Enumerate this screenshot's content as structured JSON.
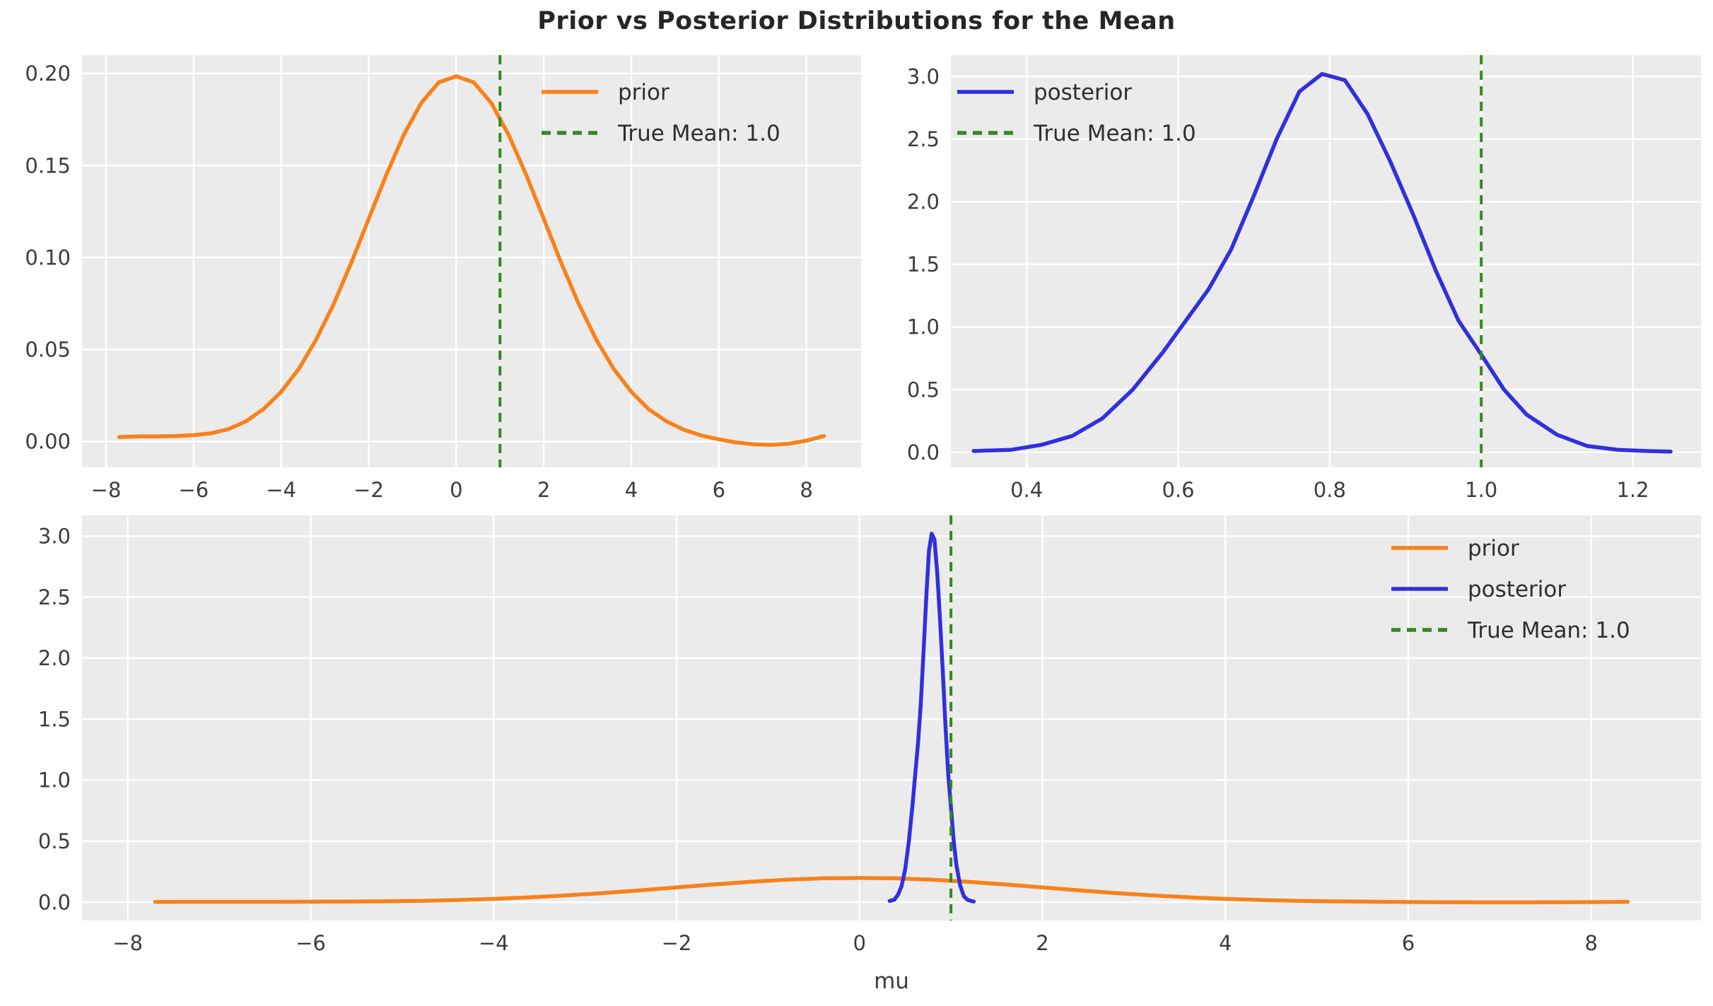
{
  "chart_data": {
    "type": "line",
    "figure_title": "Prior vs Posterior Distributions for the Mean",
    "style": {
      "figure_bg": "#ffffff",
      "plot_bg": "#ebebeb",
      "grid_color": "#ffffff",
      "title_color": "#262626",
      "tick_color": "#3c3c3c",
      "true_mean_color": "#338a1c"
    },
    "true_mean": {
      "value": 1.0,
      "label": "True Mean: 1.0"
    },
    "curves": {
      "prior": {
        "name": "prior",
        "color": "#f7821c",
        "x": [
          -7.7,
          -7.2,
          -6.8,
          -6.4,
          -6.0,
          -5.6,
          -5.2,
          -4.8,
          -4.4,
          -4.0,
          -3.6,
          -3.2,
          -2.8,
          -2.4,
          -2.0,
          -1.6,
          -1.2,
          -0.8,
          -0.4,
          0.0,
          0.4,
          0.8,
          1.2,
          1.6,
          2.0,
          2.4,
          2.8,
          3.2,
          3.6,
          4.0,
          4.4,
          4.8,
          5.2,
          5.6,
          6.0,
          6.4,
          6.8,
          7.2,
          7.6,
          8.0,
          8.4
        ],
        "y": [
          0.0025,
          0.0028,
          0.0028,
          0.003,
          0.0035,
          0.0045,
          0.0068,
          0.011,
          0.0177,
          0.027,
          0.0394,
          0.0554,
          0.0747,
          0.097,
          0.121,
          0.1448,
          0.1666,
          0.184,
          0.1952,
          0.1985,
          0.1952,
          0.184,
          0.1666,
          0.1448,
          0.121,
          0.097,
          0.0747,
          0.0554,
          0.0394,
          0.027,
          0.0175,
          0.011,
          0.0064,
          0.0033,
          0.0012,
          -0.0005,
          -0.0015,
          -0.0018,
          -0.0012,
          0.0005,
          0.003
        ]
      },
      "posterior": {
        "name": "posterior",
        "color": "#3030dd",
        "x": [
          0.33,
          0.38,
          0.42,
          0.46,
          0.5,
          0.54,
          0.58,
          0.61,
          0.64,
          0.67,
          0.7,
          0.73,
          0.76,
          0.79,
          0.82,
          0.85,
          0.88,
          0.91,
          0.94,
          0.97,
          1.0,
          1.03,
          1.06,
          1.1,
          1.14,
          1.18,
          1.22,
          1.25
        ],
        "y": [
          0.01,
          0.02,
          0.06,
          0.13,
          0.27,
          0.5,
          0.8,
          1.05,
          1.3,
          1.62,
          2.05,
          2.5,
          2.88,
          3.02,
          2.97,
          2.7,
          2.32,
          1.9,
          1.45,
          1.05,
          0.78,
          0.5,
          0.3,
          0.14,
          0.05,
          0.02,
          0.01,
          0.005
        ]
      }
    },
    "panels": [
      {
        "name": "prior-panel",
        "series": [
          "prior"
        ],
        "xlim": [
          -8.55,
          9.25
        ],
        "ylim": [
          -0.014,
          0.21
        ],
        "xticks": [
          -8,
          -6,
          -4,
          -2,
          0,
          2,
          4,
          6,
          8
        ],
        "xtick_labels": [
          "−8",
          "−6",
          "−4",
          "−2",
          "0",
          "2",
          "4",
          "6",
          "8"
        ],
        "yticks": [
          0.0,
          0.05,
          0.1,
          0.15,
          0.2
        ],
        "ytick_labels": [
          "0.00",
          "0.05",
          "0.10",
          "0.15",
          "0.20"
        ],
        "vline": 1.0,
        "xlabel": "",
        "grid": true,
        "legend": {
          "position": "upper right",
          "entries": [
            {
              "label": "prior",
              "series": "prior",
              "dashed": false
            },
            {
              "label": "True Mean: 1.0",
              "series": null,
              "dashed": true
            }
          ]
        }
      },
      {
        "name": "posterior-panel",
        "series": [
          "posterior"
        ],
        "xlim": [
          0.3,
          1.29
        ],
        "ylim": [
          -0.12,
          3.17
        ],
        "xticks": [
          0.4,
          0.6,
          0.8,
          1.0,
          1.2
        ],
        "xtick_labels": [
          "0.4",
          "0.6",
          "0.8",
          "1.0",
          "1.2"
        ],
        "yticks": [
          0.0,
          0.5,
          1.0,
          1.5,
          2.0,
          2.5,
          3.0
        ],
        "ytick_labels": [
          "0.0",
          "0.5",
          "1.0",
          "1.5",
          "2.0",
          "2.5",
          "3.0"
        ],
        "vline": 1.0,
        "xlabel": "",
        "grid": true,
        "legend": {
          "position": "upper left",
          "entries": [
            {
              "label": "posterior",
              "series": "posterior",
              "dashed": false
            },
            {
              "label": "True Mean: 1.0",
              "series": null,
              "dashed": true
            }
          ]
        }
      },
      {
        "name": "combined-panel",
        "series": [
          "prior",
          "posterior"
        ],
        "xlim": [
          -8.5,
          9.2
        ],
        "ylim": [
          -0.15,
          3.17
        ],
        "xticks": [
          -8,
          -6,
          -4,
          -2,
          0,
          2,
          4,
          6,
          8
        ],
        "xtick_labels": [
          "−8",
          "−6",
          "−4",
          "−2",
          "0",
          "2",
          "4",
          "6",
          "8"
        ],
        "yticks": [
          0.0,
          0.5,
          1.0,
          1.5,
          2.0,
          2.5,
          3.0
        ],
        "ytick_labels": [
          "0.0",
          "0.5",
          "1.0",
          "1.5",
          "2.0",
          "2.5",
          "3.0"
        ],
        "vline": 1.0,
        "xlabel": "mu",
        "grid": true,
        "legend": {
          "position": "upper right",
          "entries": [
            {
              "label": "prior",
              "series": "prior",
              "dashed": false
            },
            {
              "label": "posterior",
              "series": "posterior",
              "dashed": false
            },
            {
              "label": "True Mean: 1.0",
              "series": null,
              "dashed": true
            }
          ]
        }
      }
    ]
  }
}
